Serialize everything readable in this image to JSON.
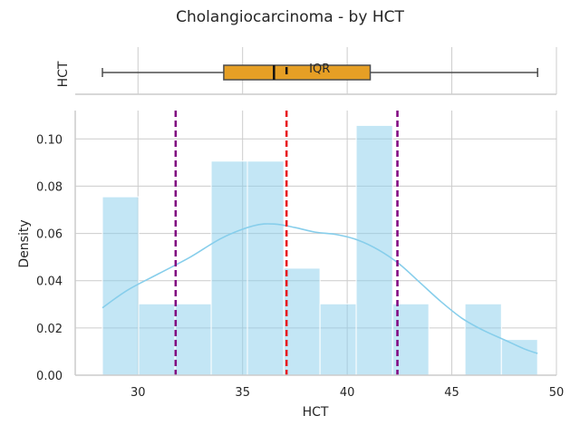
{
  "chart_data": {
    "type": "histogram",
    "title": "Cholangiocarcinoma - by HCT",
    "colors": {
      "hist": "#87ceeb",
      "kde": "#87ceeb",
      "box": "#e69f25",
      "mean_line": "#e8141c",
      "percentile_lines": "#800080",
      "grid": "#cccccc"
    },
    "boxplot": {
      "ylabel": "HCT",
      "min": 28.3,
      "q1": 34.1,
      "median": 36.5,
      "mean": 37.1,
      "q3": 41.1,
      "max": 49.1,
      "annotation": "IQR"
    },
    "histogram": {
      "xlabel": "HCT",
      "ylabel": "Density",
      "xlim": [
        27.0,
        50.0
      ],
      "ylim": [
        0.0,
        0.112
      ],
      "xticks": [
        30,
        35,
        40,
        45,
        50
      ],
      "yticks": [
        0.0,
        0.02,
        0.04,
        0.06,
        0.08,
        0.1
      ],
      "ytick_labels": [
        "0.00",
        "0.02",
        "0.04",
        "0.06",
        "0.08",
        "0.10"
      ],
      "bin_edges": [
        28.3,
        30.03,
        31.77,
        33.5,
        35.23,
        36.97,
        38.7,
        40.43,
        42.17,
        43.9,
        45.63,
        47.37,
        49.1
      ],
      "densities": [
        0.0755,
        0.0302,
        0.0302,
        0.0906,
        0.0906,
        0.0453,
        0.0302,
        0.1057,
        0.0302,
        0.0,
        0.0302,
        0.0151
      ],
      "kde": {
        "x": [
          28.3,
          29.5,
          31.0,
          32.5,
          34.0,
          35.5,
          36.5,
          37.5,
          38.5,
          39.5,
          40.5,
          41.5,
          42.5,
          43.5,
          44.5,
          45.5,
          46.5,
          47.5,
          48.5,
          49.1
        ],
        "y": [
          0.0285,
          0.036,
          0.043,
          0.05,
          0.058,
          0.0632,
          0.064,
          0.0625,
          0.0605,
          0.0595,
          0.0572,
          0.053,
          0.047,
          0.039,
          0.031,
          0.024,
          0.019,
          0.015,
          0.011,
          0.0092
        ]
      },
      "mean_line": 37.1,
      "percentile_lines": [
        31.8,
        42.4
      ]
    }
  }
}
